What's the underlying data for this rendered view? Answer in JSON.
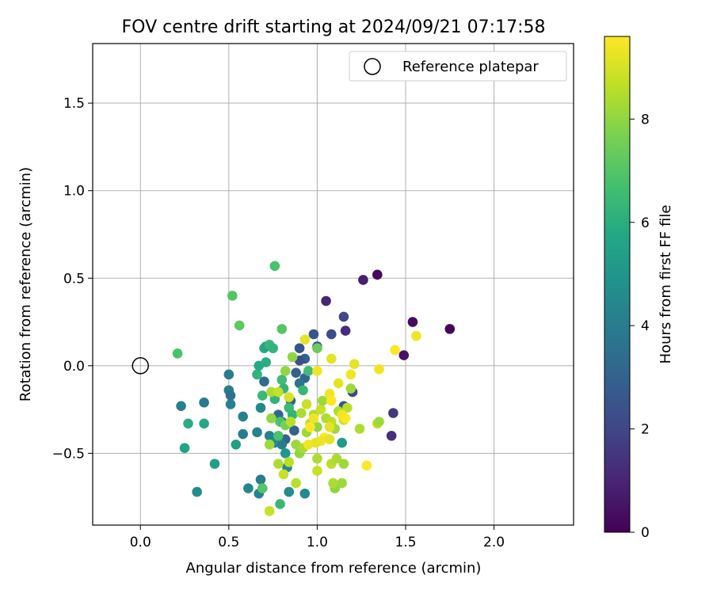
{
  "chart_data": {
    "type": "scatter",
    "title": "FOV centre drift starting at 2024/09/21 07:17:58",
    "xlabel": "Angular distance from reference (arcmin)",
    "ylabel": "Rotation from reference (arcmin)",
    "xlim": [
      -0.27,
      2.45
    ],
    "ylim": [
      -0.91,
      1.84
    ],
    "xticks": [
      0.0,
      0.5,
      1.0,
      1.5,
      2.0
    ],
    "xtick_labels": [
      "0.0",
      "0.5",
      "1.0",
      "1.5",
      "2.0"
    ],
    "yticks": [
      -0.5,
      0.0,
      0.5,
      1.0,
      1.5
    ],
    "ytick_labels": [
      "−0.5",
      "0.0",
      "0.5",
      "1.0",
      "1.5"
    ],
    "grid": true,
    "legend": {
      "position": "top-right",
      "label": "Reference platepar"
    },
    "reference_point": {
      "x": 0.0,
      "y": 0.0
    },
    "colorbar": {
      "label": "Hours from first FF file",
      "colormap": "viridis",
      "range": [
        0,
        9.6
      ],
      "ticks": [
        0,
        2,
        4,
        6,
        8
      ],
      "tick_labels": [
        "0",
        "2",
        "4",
        "6",
        "8"
      ]
    },
    "points": [
      {
        "x": 1.34,
        "y": 0.52,
        "c": 0.2
      },
      {
        "x": 1.26,
        "y": 0.49,
        "c": 0.8
      },
      {
        "x": 1.54,
        "y": 0.25,
        "c": 0.3
      },
      {
        "x": 1.75,
        "y": 0.21,
        "c": 0.1
      },
      {
        "x": 1.49,
        "y": 0.06,
        "c": 0.5
      },
      {
        "x": 1.05,
        "y": 0.37,
        "c": 1.0
      },
      {
        "x": 1.16,
        "y": 0.2,
        "c": 1.2
      },
      {
        "x": 1.15,
        "y": 0.28,
        "c": 2.0
      },
      {
        "x": 1.08,
        "y": 0.18,
        "c": 2.2
      },
      {
        "x": 0.98,
        "y": 0.18,
        "c": 2.4
      },
      {
        "x": 1.0,
        "y": 0.11,
        "c": 2.6
      },
      {
        "x": 0.9,
        "y": 0.1,
        "c": 2.5
      },
      {
        "x": 0.93,
        "y": 0.04,
        "c": 2.8
      },
      {
        "x": 0.9,
        "y": 0.03,
        "c": 2.2
      },
      {
        "x": 1.43,
        "y": -0.27,
        "c": 1.5
      },
      {
        "x": 1.42,
        "y": -0.4,
        "c": 1.3
      },
      {
        "x": 1.2,
        "y": -0.15,
        "c": 2.0
      },
      {
        "x": 1.15,
        "y": -0.23,
        "c": 2.6
      },
      {
        "x": 0.88,
        "y": -0.04,
        "c": 3.0
      },
      {
        "x": 0.93,
        "y": -0.07,
        "c": 3.2
      },
      {
        "x": 0.9,
        "y": -0.1,
        "c": 3.6
      },
      {
        "x": 0.7,
        "y": -0.09,
        "c": 3.4
      },
      {
        "x": 0.85,
        "y": -0.2,
        "c": 3.0
      },
      {
        "x": 0.78,
        "y": -0.28,
        "c": 3.2
      },
      {
        "x": 0.8,
        "y": -0.32,
        "c": 3.5
      },
      {
        "x": 0.82,
        "y": -0.42,
        "c": 3.1
      },
      {
        "x": 0.87,
        "y": -0.37,
        "c": 3.0
      },
      {
        "x": 0.5,
        "y": -0.05,
        "c": 4.0
      },
      {
        "x": 0.5,
        "y": -0.14,
        "c": 4.0
      },
      {
        "x": 0.51,
        "y": -0.17,
        "c": 3.6
      },
      {
        "x": 0.51,
        "y": -0.22,
        "c": 4.2
      },
      {
        "x": 0.36,
        "y": -0.21,
        "c": 4.0
      },
      {
        "x": 0.23,
        "y": -0.23,
        "c": 4.2
      },
      {
        "x": 0.58,
        "y": -0.29,
        "c": 4.2
      },
      {
        "x": 0.58,
        "y": -0.39,
        "c": 4.0
      },
      {
        "x": 0.66,
        "y": -0.38,
        "c": 4.3
      },
      {
        "x": 0.68,
        "y": -0.24,
        "c": 4.5
      },
      {
        "x": 0.73,
        "y": -0.4,
        "c": 4.2
      },
      {
        "x": 0.76,
        "y": -0.44,
        "c": 4.6
      },
      {
        "x": 0.8,
        "y": -0.45,
        "c": 4.0
      },
      {
        "x": 0.61,
        "y": -0.7,
        "c": 4.4
      },
      {
        "x": 0.68,
        "y": -0.65,
        "c": 4.0
      },
      {
        "x": 0.67,
        "y": -0.73,
        "c": 4.2
      },
      {
        "x": 0.32,
        "y": -0.72,
        "c": 4.6
      },
      {
        "x": 0.83,
        "y": -0.58,
        "c": 4.4
      },
      {
        "x": 0.84,
        "y": -0.72,
        "c": 4.6
      },
      {
        "x": 0.93,
        "y": -0.73,
        "c": 4.5
      },
      {
        "x": 1.14,
        "y": -0.44,
        "c": 5.2
      },
      {
        "x": 0.82,
        "y": -0.5,
        "c": 5.0
      },
      {
        "x": 0.42,
        "y": -0.56,
        "c": 5.4
      },
      {
        "x": 0.54,
        "y": -0.45,
        "c": 5.4
      },
      {
        "x": 0.25,
        "y": -0.47,
        "c": 5.6
      },
      {
        "x": 0.36,
        "y": -0.33,
        "c": 5.8
      },
      {
        "x": 0.27,
        "y": -0.33,
        "c": 6.0
      },
      {
        "x": 0.66,
        "y": -0.05,
        "c": 6.2
      },
      {
        "x": 0.67,
        "y": 0.0,
        "c": 5.8
      },
      {
        "x": 0.71,
        "y": 0.02,
        "c": 6.0
      },
      {
        "x": 0.7,
        "y": 0.1,
        "c": 6.0
      },
      {
        "x": 0.71,
        "y": 0.11,
        "c": 5.6
      },
      {
        "x": 0.73,
        "y": 0.12,
        "c": 6.4
      },
      {
        "x": 0.75,
        "y": 0.1,
        "c": 6.2
      },
      {
        "x": 0.69,
        "y": -0.17,
        "c": 6.4
      },
      {
        "x": 0.76,
        "y": -0.19,
        "c": 6.2
      },
      {
        "x": 0.8,
        "y": -0.08,
        "c": 6.6
      },
      {
        "x": 0.81,
        "y": -0.13,
        "c": 6.2
      },
      {
        "x": 0.84,
        "y": -0.24,
        "c": 6.5
      },
      {
        "x": 0.86,
        "y": -0.28,
        "c": 6.2
      },
      {
        "x": 0.92,
        "y": -0.14,
        "c": 6.4
      },
      {
        "x": 0.95,
        "y": -0.03,
        "c": 6.6
      },
      {
        "x": 0.79,
        "y": -0.32,
        "c": 6.8
      },
      {
        "x": 0.78,
        "y": -0.4,
        "c": 6.8
      },
      {
        "x": 0.79,
        "y": -0.79,
        "c": 6.4
      },
      {
        "x": 0.69,
        "y": -0.7,
        "c": 7.0
      },
      {
        "x": 0.76,
        "y": 0.57,
        "c": 6.8
      },
      {
        "x": 0.52,
        "y": 0.4,
        "c": 7.0
      },
      {
        "x": 0.56,
        "y": 0.23,
        "c": 7.2
      },
      {
        "x": 0.21,
        "y": 0.07,
        "c": 6.8
      },
      {
        "x": 0.8,
        "y": 0.21,
        "c": 7.0
      },
      {
        "x": 1.0,
        "y": 0.1,
        "c": 7.4
      },
      {
        "x": 0.73,
        "y": -0.83,
        "c": 8.8
      },
      {
        "x": 0.82,
        "y": -0.34,
        "c": 7.6
      },
      {
        "x": 0.82,
        "y": -0.03,
        "c": 8.0
      },
      {
        "x": 0.86,
        "y": 0.05,
        "c": 8.0
      },
      {
        "x": 0.88,
        "y": -0.45,
        "c": 8.2
      },
      {
        "x": 0.9,
        "y": -0.5,
        "c": 8.0
      },
      {
        "x": 0.92,
        "y": -0.47,
        "c": 8.4
      },
      {
        "x": 0.94,
        "y": -0.38,
        "c": 8.2
      },
      {
        "x": 0.96,
        "y": -0.33,
        "c": 8.6
      },
      {
        "x": 0.98,
        "y": -0.28,
        "c": 8.4
      },
      {
        "x": 1.0,
        "y": -0.35,
        "c": 8.0
      },
      {
        "x": 1.02,
        "y": -0.25,
        "c": 8.8
      },
      {
        "x": 1.03,
        "y": -0.2,
        "c": 8.2
      },
      {
        "x": 1.05,
        "y": -0.3,
        "c": 8.4
      },
      {
        "x": 1.08,
        "y": -0.32,
        "c": 8.6
      },
      {
        "x": 1.1,
        "y": -0.36,
        "c": 8.2
      },
      {
        "x": 1.12,
        "y": -0.26,
        "c": 8.4
      },
      {
        "x": 1.15,
        "y": -0.31,
        "c": 8.8
      },
      {
        "x": 1.17,
        "y": -0.24,
        "c": 8.6
      },
      {
        "x": 1.19,
        "y": -0.13,
        "c": 8.2
      },
      {
        "x": 1.24,
        "y": -0.36,
        "c": 8.4
      },
      {
        "x": 1.34,
        "y": -0.33,
        "c": 8.6
      },
      {
        "x": 1.35,
        "y": -0.32,
        "c": 8.2
      },
      {
        "x": 1.1,
        "y": -0.7,
        "c": 8.0
      },
      {
        "x": 1.09,
        "y": -0.67,
        "c": 8.4
      },
      {
        "x": 1.14,
        "y": -0.67,
        "c": 8.2
      },
      {
        "x": 1.08,
        "y": -0.56,
        "c": 8.6
      },
      {
        "x": 1.11,
        "y": -0.53,
        "c": 8.4
      },
      {
        "x": 1.15,
        "y": -0.56,
        "c": 8.2
      },
      {
        "x": 0.88,
        "y": -0.67,
        "c": 8.6
      },
      {
        "x": 0.81,
        "y": -0.62,
        "c": 8.8
      },
      {
        "x": 0.78,
        "y": -0.56,
        "c": 8.4
      },
      {
        "x": 0.84,
        "y": -0.55,
        "c": 8.6
      },
      {
        "x": 1.0,
        "y": -0.6,
        "c": 8.8
      },
      {
        "x": 1.0,
        "y": -0.53,
        "c": 8.4
      },
      {
        "x": 0.73,
        "y": -0.45,
        "c": 8.2
      },
      {
        "x": 0.74,
        "y": -0.3,
        "c": 8.0
      },
      {
        "x": 0.74,
        "y": -0.15,
        "c": 8.4
      },
      {
        "x": 0.78,
        "y": -0.15,
        "c": 8.8
      },
      {
        "x": 0.85,
        "y": -0.32,
        "c": 8.6
      },
      {
        "x": 0.91,
        "y": -0.27,
        "c": 8.4
      },
      {
        "x": 0.94,
        "y": -0.22,
        "c": 8.8
      },
      {
        "x": 0.84,
        "y": -0.18,
        "c": 9.0
      },
      {
        "x": 0.93,
        "y": 0.15,
        "c": 9.2
      },
      {
        "x": 1.0,
        "y": -0.03,
        "c": 9.4
      },
      {
        "x": 1.08,
        "y": 0.04,
        "c": 9.2
      },
      {
        "x": 1.07,
        "y": -0.16,
        "c": 9.4
      },
      {
        "x": 1.08,
        "y": -0.2,
        "c": 9.6
      },
      {
        "x": 1.12,
        "y": -0.1,
        "c": 9.2
      },
      {
        "x": 1.14,
        "y": -0.28,
        "c": 9.4
      },
      {
        "x": 1.16,
        "y": -0.3,
        "c": 9.6
      },
      {
        "x": 1.19,
        "y": -0.05,
        "c": 9.4
      },
      {
        "x": 1.21,
        "y": 0.01,
        "c": 9.2
      },
      {
        "x": 1.35,
        "y": -0.02,
        "c": 9.4
      },
      {
        "x": 1.44,
        "y": 0.09,
        "c": 9.6
      },
      {
        "x": 1.56,
        "y": 0.17,
        "c": 9.4
      },
      {
        "x": 1.07,
        "y": -0.35,
        "c": 9.2
      },
      {
        "x": 1.04,
        "y": -0.41,
        "c": 9.6
      },
      {
        "x": 1.02,
        "y": -0.43,
        "c": 9.4
      },
      {
        "x": 1.07,
        "y": -0.42,
        "c": 9.2
      },
      {
        "x": 0.96,
        "y": -0.35,
        "c": 9.6
      },
      {
        "x": 0.98,
        "y": -0.3,
        "c": 9.4
      },
      {
        "x": 0.99,
        "y": -0.44,
        "c": 9.2
      },
      {
        "x": 1.28,
        "y": -0.57,
        "c": 9.6
      },
      {
        "x": 0.95,
        "y": -0.45,
        "c": 9.4
      }
    ]
  }
}
